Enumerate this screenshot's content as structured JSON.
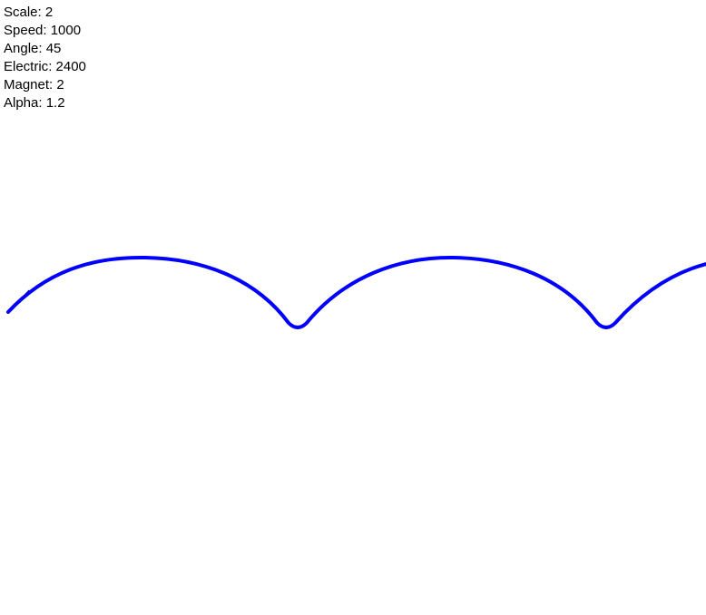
{
  "parameters": [
    {
      "label": "Scale",
      "value": "2"
    },
    {
      "label": "Speed",
      "value": "1000"
    },
    {
      "label": "Angle",
      "value": "45"
    },
    {
      "label": "Electric",
      "value": "2400"
    },
    {
      "label": "Magnet",
      "value": "2"
    },
    {
      "label": "Alpha",
      "value": "1.2"
    }
  ],
  "colors": {
    "background": "#ffffff",
    "text": "#000000",
    "trajectory": "#0000ff",
    "velocity_vector": "#000000"
  }
}
